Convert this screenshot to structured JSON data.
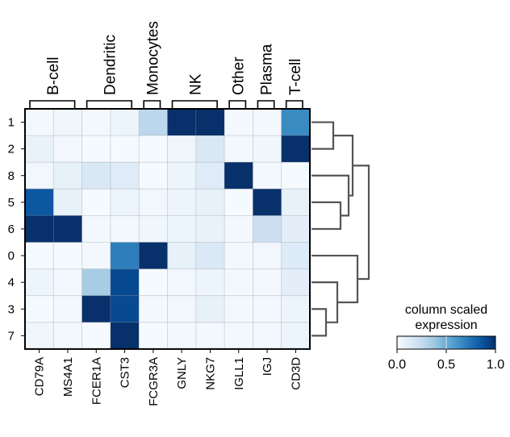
{
  "chart_data": {
    "type": "heatmap",
    "title": "",
    "columns": [
      "CD79A",
      "MS4A1",
      "FCER1A",
      "CST3",
      "FCGR3A",
      "GNLY",
      "NKG7",
      "IGLL1",
      "IGJ",
      "CD3D"
    ],
    "rows": [
      "1",
      "2",
      "8",
      "5",
      "6",
      "0",
      "4",
      "3",
      "7"
    ],
    "column_groups": [
      {
        "label": "B-cell",
        "start": 0,
        "end": 1
      },
      {
        "label": "Dendritic",
        "start": 2,
        "end": 3
      },
      {
        "label": "Monocytes",
        "start": 4,
        "end": 4
      },
      {
        "label": "NK",
        "start": 5,
        "end": 6
      },
      {
        "label": "Other",
        "start": 7,
        "end": 7
      },
      {
        "label": "Plasma",
        "start": 8,
        "end": 8
      },
      {
        "label": "T-cell",
        "start": 9,
        "end": 9
      }
    ],
    "values": [
      [
        0.02,
        0.04,
        0.02,
        0.05,
        0.28,
        1.0,
        1.0,
        0.02,
        0.02,
        0.65
      ],
      [
        0.07,
        0.03,
        0.01,
        0.01,
        0.01,
        0.04,
        0.15,
        0.02,
        0.04,
        1.0
      ],
      [
        0.03,
        0.08,
        0.15,
        0.12,
        0.01,
        0.05,
        0.12,
        1.0,
        0.02,
        0.01
      ],
      [
        0.85,
        0.08,
        0.01,
        0.05,
        0.03,
        0.05,
        0.08,
        0.01,
        1.0,
        0.08
      ],
      [
        1.0,
        1.0,
        0.02,
        0.02,
        0.04,
        0.05,
        0.07,
        0.02,
        0.22,
        0.1
      ],
      [
        0.01,
        0.01,
        0.02,
        0.7,
        1.0,
        0.08,
        0.14,
        0.02,
        0.03,
        0.13
      ],
      [
        0.05,
        0.02,
        0.35,
        0.9,
        0.01,
        0.03,
        0.05,
        0.02,
        0.02,
        0.1
      ],
      [
        0.01,
        0.02,
        1.0,
        0.9,
        0.02,
        0.03,
        0.08,
        0.02,
        0.02,
        0.05
      ],
      [
        0.04,
        0.02,
        0.01,
        1.0,
        0.01,
        0.02,
        0.02,
        0.02,
        0.02,
        0.05
      ]
    ],
    "colormap": "Blues",
    "colormap_stops": [
      "#f7fbff",
      "#deebf7",
      "#c6dbef",
      "#9ecae1",
      "#6baed6",
      "#4292c6",
      "#2171b5",
      "#08519c",
      "#08306b"
    ],
    "dendrogram": "right",
    "colorbar": {
      "title_line1": "column scaled",
      "title_line2": "expression",
      "range": [
        0.0,
        1.0
      ],
      "ticks": [
        "0.0",
        "0.5",
        "1.0"
      ]
    }
  }
}
